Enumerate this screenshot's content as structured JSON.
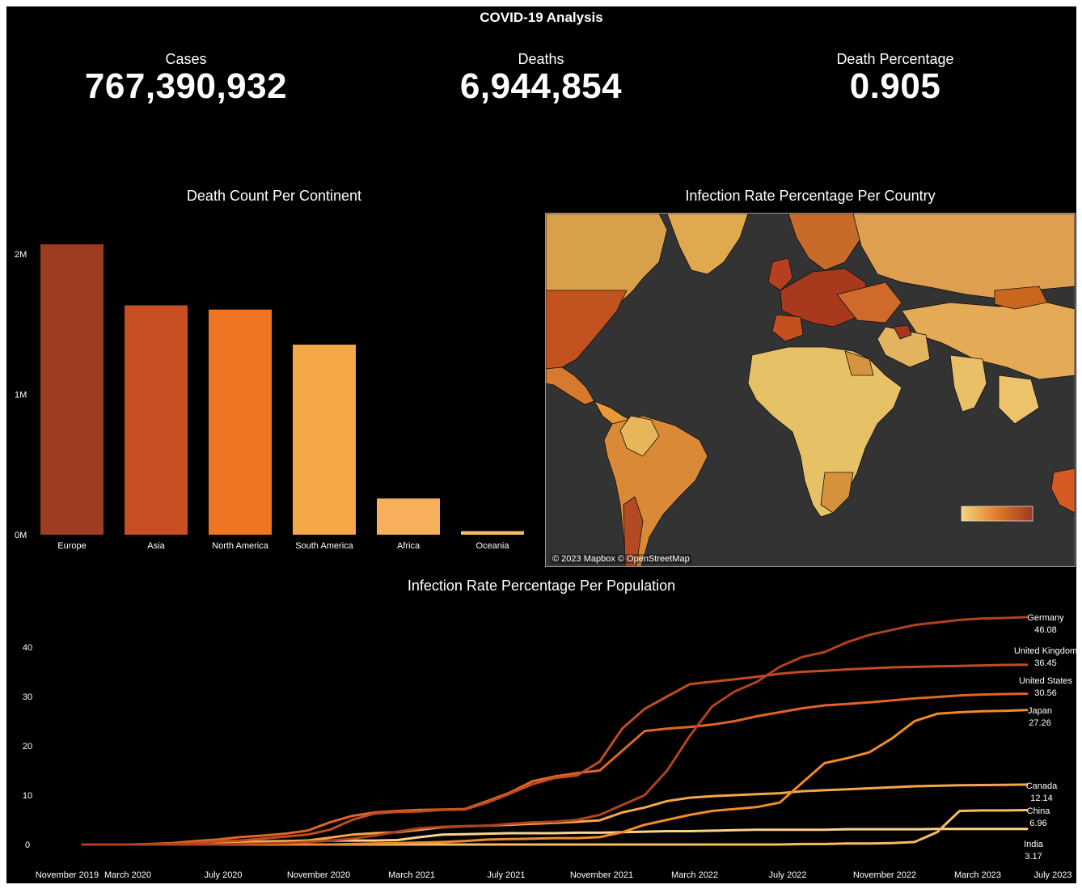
{
  "dashboard_title": "COVID-19 Analysis",
  "kpis": [
    {
      "label": "Cases",
      "value": "767,390,932"
    },
    {
      "label": "Deaths",
      "value": "6,944,854"
    },
    {
      "label": "Death Percentage",
      "value": "0.905"
    }
  ],
  "map": {
    "title": "Infection Rate Percentage Per Country",
    "credit": "© 2023 Mapbox © OpenStreetMap",
    "color_low": "#f5d67a",
    "color_high": "#9c3a1e",
    "land_default": "#d9a04a",
    "ocean": "#333333"
  },
  "chart_data": [
    {
      "type": "bar",
      "title": "Death Count Per Continent",
      "categories": [
        "Europe",
        "Asia",
        "North America",
        "South America",
        "Africa",
        "Oceania"
      ],
      "values": [
        2070000,
        1635000,
        1605000,
        1355000,
        258000,
        25000
      ],
      "colors": [
        "#9e3c21",
        "#c84f22",
        "#ef7524",
        "#f4a847",
        "#f6b05b",
        "#f8bb67"
      ],
      "yticks": [
        0,
        1000000,
        2000000
      ],
      "ytick_labels": [
        "0M",
        "1M",
        "2M"
      ],
      "ylim": [
        0,
        2180000
      ]
    },
    {
      "type": "line",
      "title": "Infection Rate Percentage Per Population",
      "x_ticks": [
        "November 2019",
        "March 2020",
        "July 2020",
        "November 2020",
        "March 2021",
        "July 2021",
        "November 2021",
        "March 2022",
        "July 2022",
        "November 2022",
        "March 2023",
        "July 2023"
      ],
      "yticks": [
        0,
        10,
        20,
        30,
        40
      ],
      "ylim": [
        0,
        47
      ],
      "series": [
        {
          "name": "Germany",
          "end_label": "46.08",
          "color": "#b0421f",
          "values": [
            0,
            0,
            0,
            0,
            0,
            0,
            0,
            0.1,
            0.2,
            0.3,
            0.5,
            0.8,
            1.2,
            1.8,
            2.6,
            3.3,
            3.6,
            3.7,
            3.8,
            4.2,
            4.5,
            4.6,
            5.0,
            6.0,
            8.0,
            10.0,
            15.0,
            22.0,
            28.0,
            31.0,
            33.0,
            36.0,
            38.0,
            39.0,
            41.0,
            42.5,
            43.5,
            44.5,
            45.0,
            45.5,
            45.8,
            45.9,
            46.08
          ]
        },
        {
          "name": "United Kingdom",
          "end_label": "36.45",
          "color": "#c04c22",
          "values": [
            0,
            0,
            0,
            0,
            0.1,
            0.3,
            0.6,
            0.8,
            1.2,
            1.6,
            2.0,
            3.0,
            5.0,
            6.3,
            6.6,
            6.7,
            7.0,
            7.1,
            8.5,
            10.3,
            12.2,
            13.5,
            14.0,
            16.8,
            23.5,
            27.5,
            30.0,
            32.5,
            33.0,
            33.5,
            34.0,
            34.6,
            35.0,
            35.2,
            35.5,
            35.7,
            35.9,
            36.0,
            36.1,
            36.2,
            36.3,
            36.4,
            36.45
          ]
        },
        {
          "name": "United States",
          "end_label": "30.56",
          "color": "#e06526",
          "values": [
            0,
            0,
            0,
            0.1,
            0.3,
            0.7,
            1.0,
            1.5,
            1.8,
            2.2,
            2.8,
            4.5,
            5.8,
            6.5,
            6.8,
            7.0,
            7.1,
            7.2,
            8.8,
            10.5,
            12.8,
            13.8,
            14.5,
            15.0,
            19.0,
            23.0,
            23.5,
            23.8,
            24.3,
            25.0,
            26.0,
            26.8,
            27.6,
            28.2,
            28.5,
            28.8,
            29.2,
            29.6,
            29.9,
            30.2,
            30.4,
            30.5,
            30.56
          ]
        },
        {
          "name": "Japan",
          "end_label": "27.26",
          "color": "#f08a2c",
          "values": [
            0,
            0,
            0,
            0,
            0,
            0,
            0,
            0,
            0,
            0,
            0,
            0,
            0.1,
            0.2,
            0.3,
            0.4,
            0.5,
            0.7,
            1.0,
            1.1,
            1.2,
            1.3,
            1.3,
            1.5,
            2.5,
            4.0,
            5.0,
            6.0,
            6.8,
            7.2,
            7.6,
            8.5,
            12.5,
            16.5,
            17.5,
            18.7,
            21.5,
            25.0,
            26.5,
            26.8,
            27.0,
            27.1,
            27.26
          ]
        },
        {
          "name": "Canada",
          "end_label": "12.14",
          "color": "#f4a748",
          "values": [
            0,
            0,
            0,
            0,
            0.1,
            0.2,
            0.3,
            0.4,
            0.5,
            0.6,
            0.8,
            1.4,
            2.0,
            2.3,
            2.5,
            3.0,
            3.5,
            3.7,
            3.8,
            4.0,
            4.2,
            4.4,
            4.6,
            4.9,
            6.5,
            7.5,
            8.8,
            9.5,
            9.8,
            10.0,
            10.2,
            10.4,
            10.8,
            11.0,
            11.2,
            11.4,
            11.6,
            11.8,
            11.9,
            12.0,
            12.05,
            12.1,
            12.14
          ]
        },
        {
          "name": "China",
          "end_label": "6.96",
          "color": "#f7bb63",
          "values": [
            0,
            0,
            0,
            0,
            0,
            0,
            0,
            0,
            0,
            0,
            0,
            0,
            0,
            0,
            0,
            0,
            0,
            0,
            0,
            0,
            0,
            0,
            0,
            0,
            0,
            0,
            0,
            0,
            0,
            0,
            0,
            0,
            0.1,
            0.1,
            0.2,
            0.2,
            0.3,
            0.5,
            2.5,
            6.8,
            6.9,
            6.9,
            6.96
          ]
        },
        {
          "name": "India",
          "end_label": "3.17",
          "color": "#fbd38a",
          "values": [
            0,
            0,
            0,
            0,
            0,
            0.2,
            0.4,
            0.5,
            0.6,
            0.7,
            0.8,
            0.8,
            0.8,
            0.8,
            0.9,
            1.5,
            2.0,
            2.1,
            2.2,
            2.3,
            2.3,
            2.3,
            2.4,
            2.4,
            2.5,
            2.6,
            2.7,
            2.7,
            2.8,
            2.9,
            3.0,
            3.0,
            3.0,
            3.0,
            3.1,
            3.1,
            3.1,
            3.1,
            3.15,
            3.16,
            3.16,
            3.17,
            3.17
          ]
        }
      ]
    }
  ]
}
